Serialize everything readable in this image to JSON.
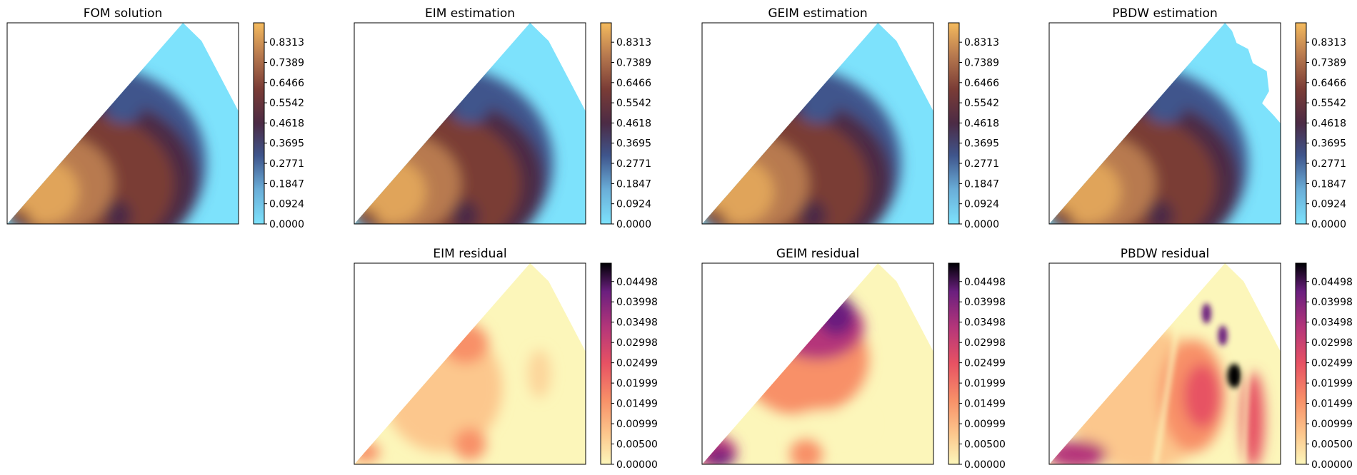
{
  "chart_data": [
    {
      "type": "heatmap",
      "title": "FOM solution",
      "colormap": "solution",
      "colorbar_ticks": [
        "0.8313",
        "0.7389",
        "0.6466",
        "0.5542",
        "0.4618",
        "0.3695",
        "0.2771",
        "0.1847",
        "0.0924",
        "0.0000"
      ],
      "value_range": [
        0.0,
        0.92
      ]
    },
    {
      "type": "heatmap",
      "title": "EIM estimation",
      "colormap": "solution",
      "colorbar_ticks": [
        "0.8313",
        "0.7389",
        "0.6466",
        "0.5542",
        "0.4618",
        "0.3695",
        "0.2771",
        "0.1847",
        "0.0924",
        "0.0000"
      ],
      "value_range": [
        0.0,
        0.92
      ]
    },
    {
      "type": "heatmap",
      "title": "GEIM estimation",
      "colormap": "solution",
      "colorbar_ticks": [
        "0.8313",
        "0.7389",
        "0.6466",
        "0.5542",
        "0.4618",
        "0.3695",
        "0.2771",
        "0.1847",
        "0.0924",
        "0.0000"
      ],
      "value_range": [
        0.0,
        0.92
      ]
    },
    {
      "type": "heatmap",
      "title": "PBDW estimation",
      "colormap": "solution",
      "colorbar_ticks": [
        "0.8313",
        "0.7389",
        "0.6466",
        "0.5542",
        "0.4618",
        "0.3695",
        "0.2771",
        "0.1847",
        "0.0924",
        "0.0000"
      ],
      "value_range": [
        0.0,
        0.92
      ]
    },
    {
      "type": "heatmap",
      "title": "EIM residual",
      "colormap": "residual",
      "colorbar_ticks": [
        "0.04498",
        "0.03998",
        "0.03498",
        "0.02998",
        "0.02499",
        "0.01999",
        "0.01499",
        "0.00999",
        "0.00500",
        "0.00000"
      ],
      "value_range": [
        0.0,
        0.0495
      ]
    },
    {
      "type": "heatmap",
      "title": "GEIM residual",
      "colormap": "residual",
      "colorbar_ticks": [
        "0.04498",
        "0.03998",
        "0.03498",
        "0.02998",
        "0.02499",
        "0.01999",
        "0.01499",
        "0.00999",
        "0.00500",
        "0.00000"
      ],
      "value_range": [
        0.0,
        0.0495
      ]
    },
    {
      "type": "heatmap",
      "title": "PBDW residual",
      "colormap": "residual",
      "colorbar_ticks": [
        "0.04498",
        "0.03998",
        "0.03498",
        "0.02998",
        "0.02499",
        "0.01999",
        "0.01499",
        "0.00999",
        "0.00500",
        "0.00000"
      ],
      "value_range": [
        0.0,
        0.0495
      ]
    }
  ],
  "colors": {
    "solution_stops": [
      "#7de2fc",
      "#6aaed8",
      "#3f558c",
      "#4c2b45",
      "#7a3c36",
      "#b87a4f",
      "#f5bb5e"
    ],
    "residual_stops": [
      "#fcf6ba",
      "#fcc78d",
      "#f89068",
      "#e75263",
      "#b5367a",
      "#6a1f7e",
      "#000004"
    ]
  }
}
